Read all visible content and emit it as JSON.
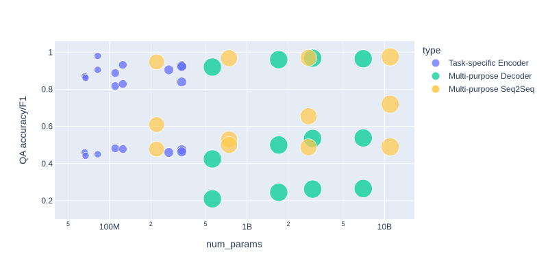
{
  "chart_data": {
    "type": "scatter",
    "xlabel": "num_params",
    "ylabel": "QA accuracy/F1",
    "x_scale": "log",
    "xlim": [
      40000000,
      16500000000
    ],
    "ylim": [
      0.1,
      1.06
    ],
    "x_major_ticks": [
      {
        "value": 100000000,
        "label": "100M"
      },
      {
        "value": 1000000000,
        "label": "1B"
      },
      {
        "value": 10000000000,
        "label": "10B"
      }
    ],
    "x_minor_ticks": [
      {
        "value": 50000000,
        "label": "5"
      },
      {
        "value": 200000000,
        "label": "2"
      },
      {
        "value": 500000000,
        "label": "5"
      },
      {
        "value": 2000000000,
        "label": "2"
      },
      {
        "value": 5000000000,
        "label": "5"
      }
    ],
    "y_ticks": [
      {
        "value": 0.2,
        "label": "0.2"
      },
      {
        "value": 0.4,
        "label": "0.4"
      },
      {
        "value": 0.6,
        "label": "0.6"
      },
      {
        "value": 0.8,
        "label": "0.8"
      },
      {
        "value": 1.0,
        "label": "1"
      }
    ],
    "grid": true,
    "legend_title": "type",
    "legend_position": "right",
    "series": [
      {
        "name": "Task-specific Encoder",
        "color": "#636efa",
        "points": [
          {
            "x": 66000000,
            "y": 0.87,
            "size": 3
          },
          {
            "x": 67000000,
            "y": 0.862,
            "size": 3
          },
          {
            "x": 82000000,
            "y": 0.98,
            "size": 3
          },
          {
            "x": 82000000,
            "y": 0.905,
            "size": 3
          },
          {
            "x": 110000000,
            "y": 0.888,
            "size": 4
          },
          {
            "x": 110000000,
            "y": 0.818,
            "size": 4
          },
          {
            "x": 125000000,
            "y": 0.932,
            "size": 4
          },
          {
            "x": 125000000,
            "y": 0.829,
            "size": 4
          },
          {
            "x": 270000000,
            "y": 0.905,
            "size": 5
          },
          {
            "x": 335000000,
            "y": 0.928,
            "size": 5
          },
          {
            "x": 335000000,
            "y": 0.923,
            "size": 5
          },
          {
            "x": 335000000,
            "y": 0.84,
            "size": 5
          },
          {
            "x": 66000000,
            "y": 0.46,
            "size": 3
          },
          {
            "x": 67000000,
            "y": 0.442,
            "size": 3
          },
          {
            "x": 82000000,
            "y": 0.45,
            "size": 3
          },
          {
            "x": 110000000,
            "y": 0.482,
            "size": 4
          },
          {
            "x": 125000000,
            "y": 0.478,
            "size": 4
          },
          {
            "x": 270000000,
            "y": 0.46,
            "size": 5
          },
          {
            "x": 335000000,
            "y": 0.475,
            "size": 5
          },
          {
            "x": 335000000,
            "y": 0.463,
            "size": 5
          }
        ]
      },
      {
        "name": "Multi-purpose Decoder",
        "color": "#00cc96",
        "points": [
          {
            "x": 560000000,
            "y": 0.92,
            "size": 12
          },
          {
            "x": 560000000,
            "y": 0.425,
            "size": 12
          },
          {
            "x": 560000000,
            "y": 0.21,
            "size": 12
          },
          {
            "x": 1700000000,
            "y": 0.96,
            "size": 12
          },
          {
            "x": 1700000000,
            "y": 0.5,
            "size": 12
          },
          {
            "x": 1700000000,
            "y": 0.245,
            "size": 12
          },
          {
            "x": 3000000000,
            "y": 0.968,
            "size": 12
          },
          {
            "x": 3000000000,
            "y": 0.535,
            "size": 12
          },
          {
            "x": 3000000000,
            "y": 0.262,
            "size": 12
          },
          {
            "x": 7000000000,
            "y": 0.965,
            "size": 12
          },
          {
            "x": 7000000000,
            "y": 0.538,
            "size": 12
          },
          {
            "x": 7000000000,
            "y": 0.265,
            "size": 12
          }
        ]
      },
      {
        "name": "Multi-purpose Seq2Seq",
        "color": "#fecb52",
        "points": [
          {
            "x": 220000000,
            "y": 0.948,
            "size": 10
          },
          {
            "x": 220000000,
            "y": 0.61,
            "size": 10
          },
          {
            "x": 220000000,
            "y": 0.478,
            "size": 10
          },
          {
            "x": 740000000,
            "y": 0.968,
            "size": 11
          },
          {
            "x": 740000000,
            "y": 0.53,
            "size": 11
          },
          {
            "x": 740000000,
            "y": 0.5,
            "size": 11
          },
          {
            "x": 2800000000,
            "y": 0.97,
            "size": 11
          },
          {
            "x": 2800000000,
            "y": 0.655,
            "size": 11
          },
          {
            "x": 2800000000,
            "y": 0.488,
            "size": 11
          },
          {
            "x": 11000000000,
            "y": 0.975,
            "size": 12
          },
          {
            "x": 11000000000,
            "y": 0.72,
            "size": 12
          },
          {
            "x": 11000000000,
            "y": 0.49,
            "size": 12
          }
        ]
      }
    ]
  }
}
